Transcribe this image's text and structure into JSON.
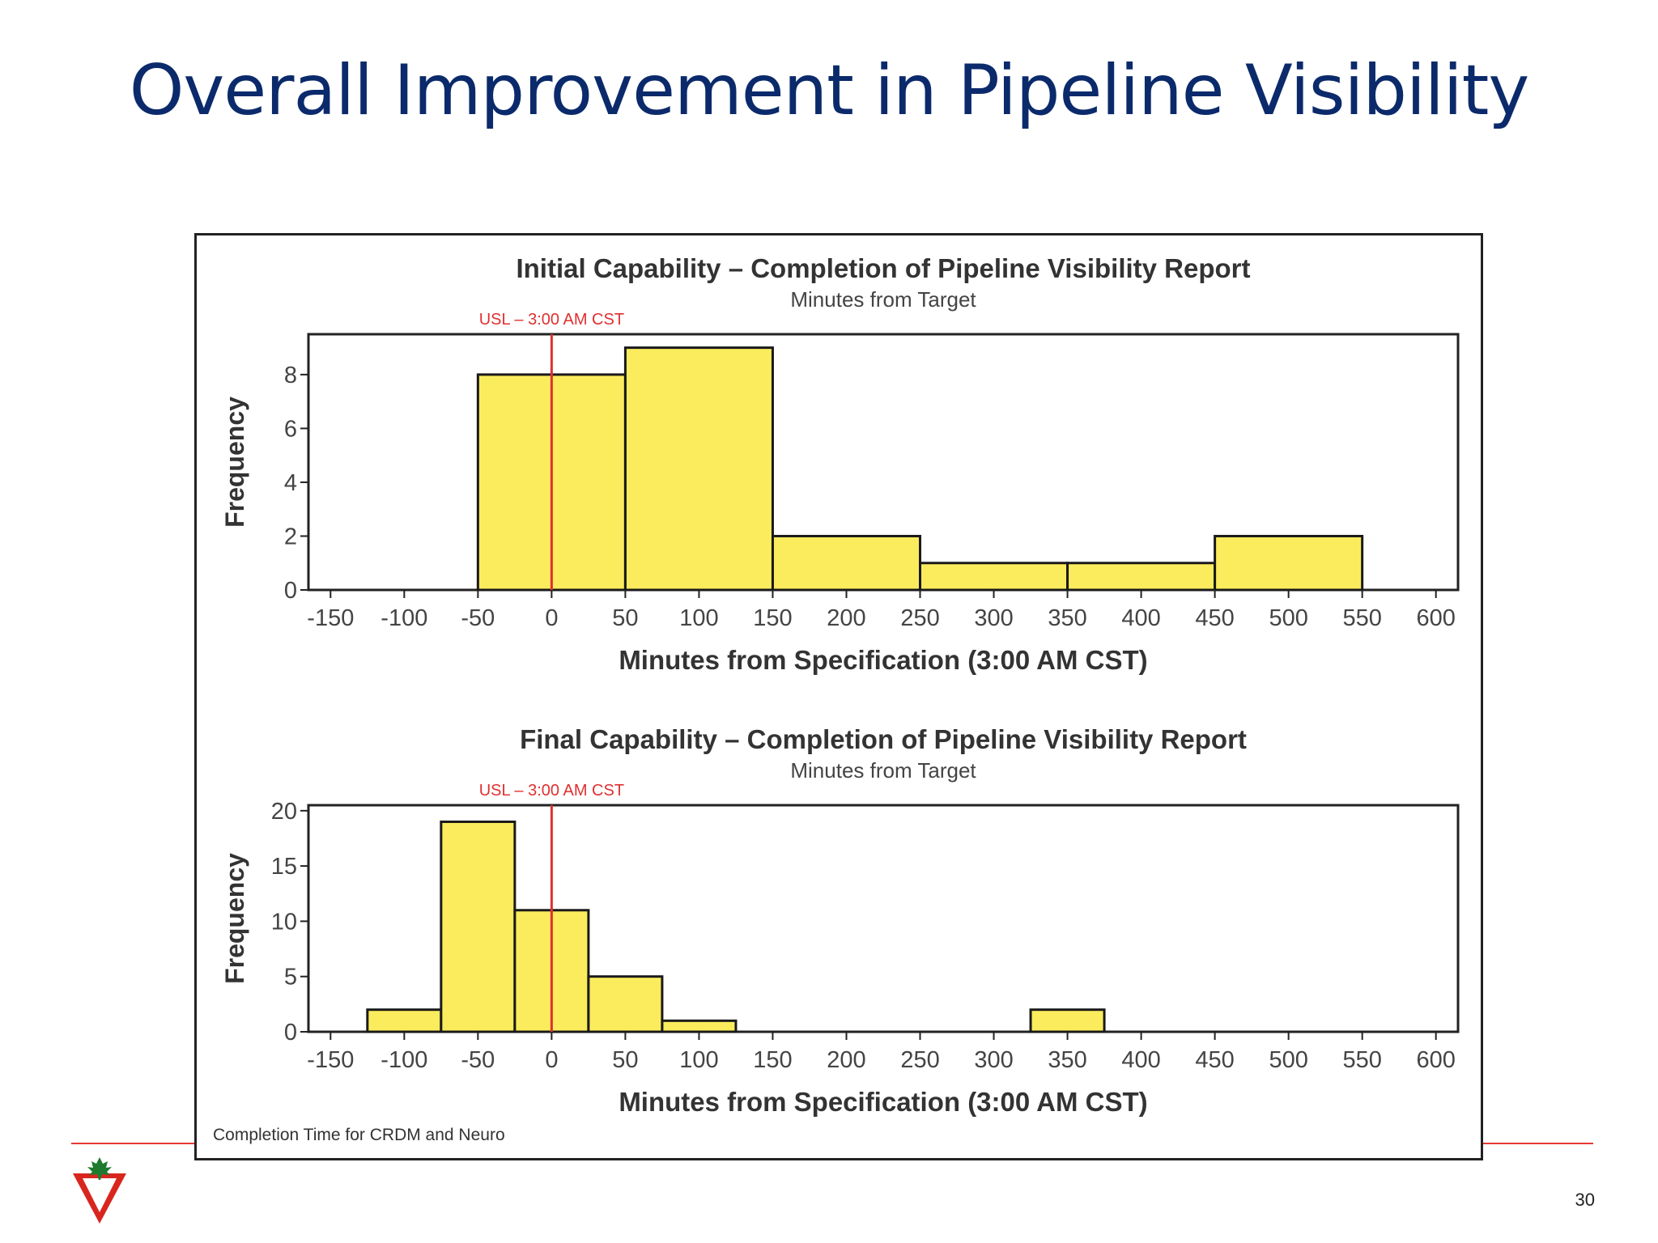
{
  "slide": {
    "title": "Overall Improvement in Pipeline Visibility",
    "page_number": "30",
    "footnote": "Completion Time for CRDM and Neuro",
    "accent_color": "#e63a32",
    "title_color": "#0b2a6b",
    "logo_icon": "maple-leaf-triangle-icon"
  },
  "chart_data": [
    {
      "type": "bar",
      "title": "Initial Capability – Completion of Pipeline Visibility Report",
      "subtitle": "Minutes from Target",
      "xlabel": "Minutes from Specification (3:00 AM CST)",
      "ylabel": "Frequency",
      "reference_line": {
        "label": "USL – 3:00 AM CST",
        "x": 0,
        "color": "#e03030"
      },
      "xlim": [
        -165,
        615
      ],
      "ylim": [
        0,
        9.5
      ],
      "xticks": [
        -150,
        -100,
        -50,
        0,
        50,
        100,
        150,
        200,
        250,
        300,
        350,
        400,
        450,
        500,
        550,
        600
      ],
      "yticks": [
        0,
        2,
        4,
        6,
        8
      ],
      "grid": false,
      "bar_color": "#fbec5d",
      "bins": [
        {
          "start": -50,
          "end": 50,
          "value": 8
        },
        {
          "start": 50,
          "end": 150,
          "value": 9
        },
        {
          "start": 150,
          "end": 250,
          "value": 2
        },
        {
          "start": 250,
          "end": 350,
          "value": 1
        },
        {
          "start": 350,
          "end": 450,
          "value": 1
        },
        {
          "start": 450,
          "end": 550,
          "value": 2
        }
      ]
    },
    {
      "type": "bar",
      "title": "Final Capability – Completion of Pipeline Visibility Report",
      "subtitle": "Minutes from Target",
      "xlabel": "Minutes from Specification (3:00 AM CST)",
      "ylabel": "Frequency",
      "reference_line": {
        "label": "USL – 3:00 AM CST",
        "x": 0,
        "color": "#e03030"
      },
      "xlim": [
        -165,
        615
      ],
      "ylim": [
        0,
        20.5
      ],
      "xticks": [
        -150,
        -100,
        -50,
        0,
        50,
        100,
        150,
        200,
        250,
        300,
        350,
        400,
        450,
        500,
        550,
        600
      ],
      "yticks": [
        0,
        5,
        10,
        15,
        20
      ],
      "grid": false,
      "bar_color": "#fbec5d",
      "bins": [
        {
          "start": -125,
          "end": -75,
          "value": 2
        },
        {
          "start": -75,
          "end": -25,
          "value": 19
        },
        {
          "start": -25,
          "end": 25,
          "value": 11
        },
        {
          "start": 25,
          "end": 75,
          "value": 5
        },
        {
          "start": 75,
          "end": 125,
          "value": 1
        },
        {
          "start": 325,
          "end": 375,
          "value": 2
        }
      ]
    }
  ]
}
